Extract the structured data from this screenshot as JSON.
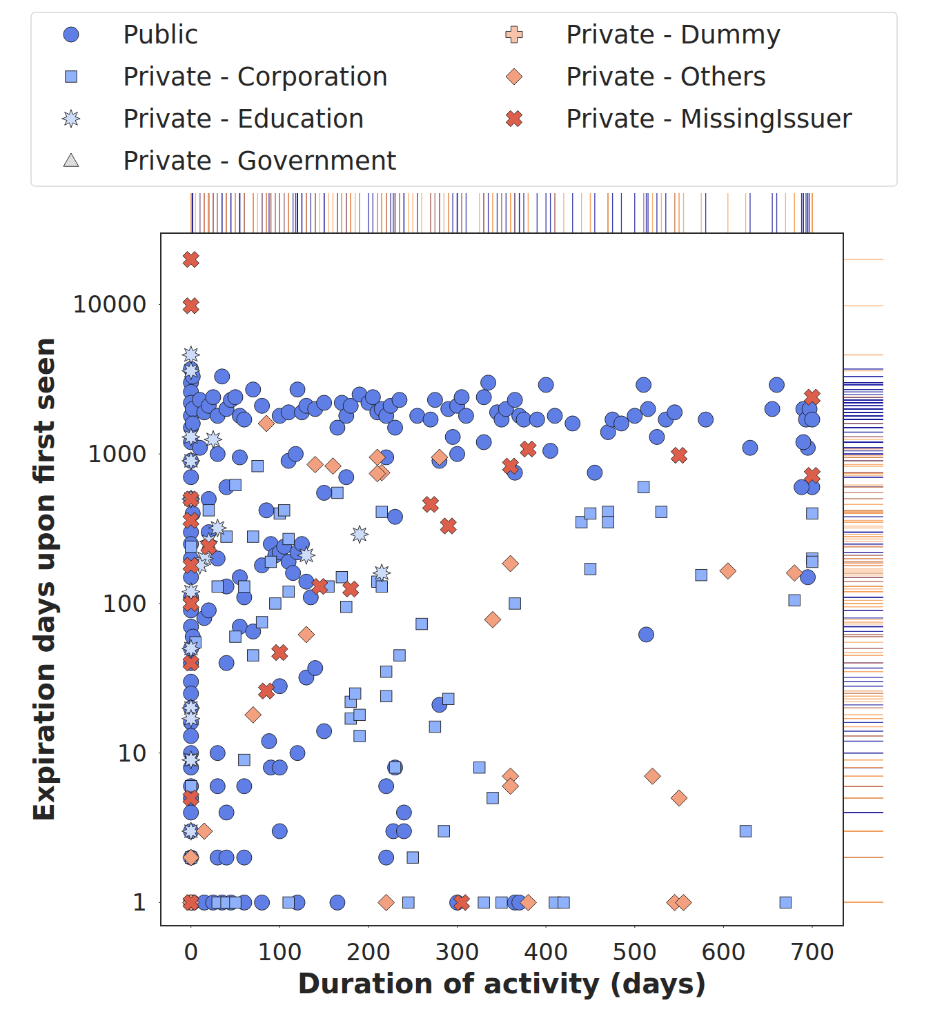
{
  "chart_data": {
    "type": "scatter",
    "x_label": "Duration of activity (days)",
    "y_label": "Expiration days upon first seen",
    "xlim": [
      -34,
      735
    ],
    "xticks": [
      0,
      100,
      200,
      300,
      400,
      500,
      600,
      700
    ],
    "ylim": [
      0.7,
      30000
    ],
    "yticks": [
      1,
      10,
      100,
      1000,
      10000
    ],
    "log": "y",
    "grid": false,
    "legend": "top",
    "series": [
      {
        "name": "Public",
        "color": "#5f7fe6",
        "marker": "circle",
        "x": [
          0,
          0,
          0,
          0,
          0,
          0,
          0,
          0,
          0,
          0,
          0,
          0,
          0,
          0,
          0,
          0,
          0,
          0,
          0,
          0,
          0,
          0,
          0,
          0,
          0,
          0,
          0,
          0,
          0,
          0,
          0,
          0,
          2,
          2,
          2,
          2,
          2,
          2,
          10,
          15,
          20,
          25,
          30,
          35,
          40,
          45,
          50,
          55,
          60,
          70,
          80,
          100,
          110,
          120,
          125,
          130,
          140,
          150,
          165,
          170,
          175,
          180,
          190,
          200,
          205,
          210,
          215,
          220,
          225,
          230,
          235,
          255,
          270,
          275,
          290,
          295,
          300,
          305,
          310,
          330,
          335,
          345,
          350,
          355,
          365,
          370,
          375,
          390,
          400,
          410,
          430,
          470,
          475,
          485,
          500,
          510,
          515,
          525,
          535,
          545,
          580,
          630,
          655,
          660,
          690,
          693,
          697,
          700,
          695,
          690,
          700,
          688,
          695,
          10,
          20,
          30,
          40,
          55,
          110,
          118,
          175,
          220,
          230,
          280,
          300,
          330,
          365,
          405,
          455,
          20,
          30,
          40,
          55,
          60,
          80,
          85,
          90,
          95,
          100,
          105,
          110,
          115,
          120,
          125,
          130,
          135,
          150,
          15,
          20,
          30,
          40,
          55,
          70,
          100,
          130,
          140,
          150,
          120,
          90,
          100,
          88,
          30,
          60,
          30,
          40,
          60,
          40,
          100,
          230,
          240,
          220,
          228,
          240,
          220,
          280,
          513,
          15,
          25,
          35,
          45,
          60,
          80,
          120,
          165,
          300,
          365,
          370
        ],
        "values": [
          3700,
          3000,
          2600,
          2200,
          1800,
          1500,
          1200,
          900,
          700,
          500,
          300,
          250,
          200,
          150,
          110,
          90,
          70,
          50,
          40,
          30,
          25,
          20,
          16,
          13,
          10,
          8,
          6,
          5,
          4,
          3,
          2,
          1,
          3300,
          2000,
          1600,
          400,
          60,
          1,
          2300,
          1900,
          2100,
          2400,
          1800,
          3300,
          2000,
          2300,
          2400,
          1800,
          1700,
          2700,
          2100,
          1800,
          1900,
          2700,
          1900,
          2100,
          2000,
          2200,
          1500,
          2200,
          1800,
          2100,
          2500,
          2200,
          2400,
          1900,
          2000,
          1800,
          2100,
          1500,
          2300,
          1800,
          1700,
          2300,
          2000,
          1300,
          2100,
          2400,
          1800,
          2400,
          3000,
          1900,
          1700,
          2000,
          2300,
          1800,
          1700,
          1700,
          2900,
          1800,
          1600,
          1400,
          1700,
          1600,
          1800,
          2900,
          2000,
          1300,
          1700,
          1900,
          1700,
          1100,
          2000,
          2900,
          2000,
          1700,
          2000,
          1700,
          1100,
          1200,
          600,
          600,
          150,
          1100,
          500,
          1000,
          600,
          950,
          900,
          1000,
          700,
          950,
          380,
          900,
          1000,
          1200,
          750,
          1050,
          750,
          300,
          200,
          130,
          150,
          110,
          180,
          420,
          250,
          210,
          220,
          240,
          190,
          160,
          220,
          250,
          140,
          110,
          550,
          80,
          90,
          10,
          40,
          70,
          65,
          28,
          32,
          37,
          14,
          10,
          8,
          8,
          12,
          6,
          6,
          2,
          2,
          2,
          4,
          3,
          8,
          4,
          6,
          3,
          3,
          2,
          21,
          62,
          1,
          1,
          1,
          1,
          1,
          1,
          1,
          1,
          1,
          1,
          1
        ]
      },
      {
        "name": "Private - Corporation",
        "color": "#8fb0fa",
        "marker": "square",
        "x": [
          0,
          0,
          0,
          0,
          5,
          20,
          30,
          40,
          50,
          60,
          70,
          75,
          70,
          50,
          60,
          80,
          90,
          95,
          100,
          105,
          110,
          110,
          155,
          165,
          170,
          175,
          180,
          180,
          185,
          190,
          190,
          210,
          215,
          215,
          220,
          220,
          235,
          230,
          250,
          260,
          275,
          290,
          285,
          325,
          340,
          350,
          365,
          440,
          450,
          450,
          470,
          470,
          510,
          530,
          575,
          625,
          680,
          700,
          700,
          700,
          670,
          30,
          40,
          50,
          110,
          245,
          330,
          410,
          420
        ],
        "values": [
          240,
          6,
          9,
          2,
          55,
          420,
          130,
          280,
          620,
          130,
          280,
          830,
          45,
          60,
          9,
          75,
          190,
          100,
          400,
          420,
          270,
          120,
          130,
          550,
          150,
          95,
          22,
          17,
          25,
          18,
          13,
          140,
          130,
          410,
          35,
          24,
          45,
          8,
          2,
          73,
          15,
          23,
          3,
          8,
          5,
          1,
          100,
          350,
          400,
          170,
          410,
          350,
          600,
          410,
          155,
          3,
          105,
          400,
          200,
          190,
          1,
          1,
          1,
          1,
          1,
          1,
          1,
          1,
          1
        ]
      },
      {
        "name": "Private - Education",
        "color": "#cddcf8",
        "marker": "star",
        "x": [
          0,
          0,
          0,
          0,
          0,
          0,
          0,
          0,
          0,
          0,
          0,
          20,
          30,
          15,
          25,
          130,
          190,
          215,
          10
        ],
        "values": [
          4600,
          3600,
          1300,
          900,
          500,
          120,
          50,
          20,
          17,
          9,
          3,
          260,
          320,
          200,
          1250,
          210,
          290,
          160,
          180
        ]
      },
      {
        "name": "Private - Government",
        "color": "#dddddd",
        "marker": "triangle",
        "x": [],
        "values": []
      },
      {
        "name": "Private - Dummy",
        "color": "#f7c4ab",
        "marker": "plus",
        "x": [],
        "values": []
      },
      {
        "name": "Private - Others",
        "color": "#f2a07f",
        "marker": "diamond",
        "x": [
          85,
          140,
          160,
          210,
          215,
          210,
          280,
          360,
          340,
          130,
          70,
          15,
          0,
          220,
          360,
          360,
          380,
          520,
          550,
          545,
          555,
          605,
          680,
          0
        ],
        "values": [
          1600,
          850,
          830,
          950,
          750,
          740,
          950,
          185,
          78,
          62,
          18,
          3,
          1,
          1,
          7,
          6,
          1,
          7,
          5,
          1,
          1,
          165,
          160,
          2
        ]
      },
      {
        "name": "Private - MissingIssuer",
        "color": "#dc5e4b",
        "marker": "x",
        "x": [
          0,
          0,
          0,
          0,
          0,
          0,
          0,
          0,
          0,
          20,
          145,
          180,
          100,
          85,
          270,
          290,
          360,
          380,
          550,
          700,
          700,
          305
        ],
        "values": [
          20000,
          9800,
          500,
          360,
          180,
          100,
          40,
          5,
          1,
          240,
          130,
          125,
          47,
          26,
          460,
          330,
          830,
          1080,
          980,
          2400,
          720,
          1
        ]
      }
    ]
  }
}
